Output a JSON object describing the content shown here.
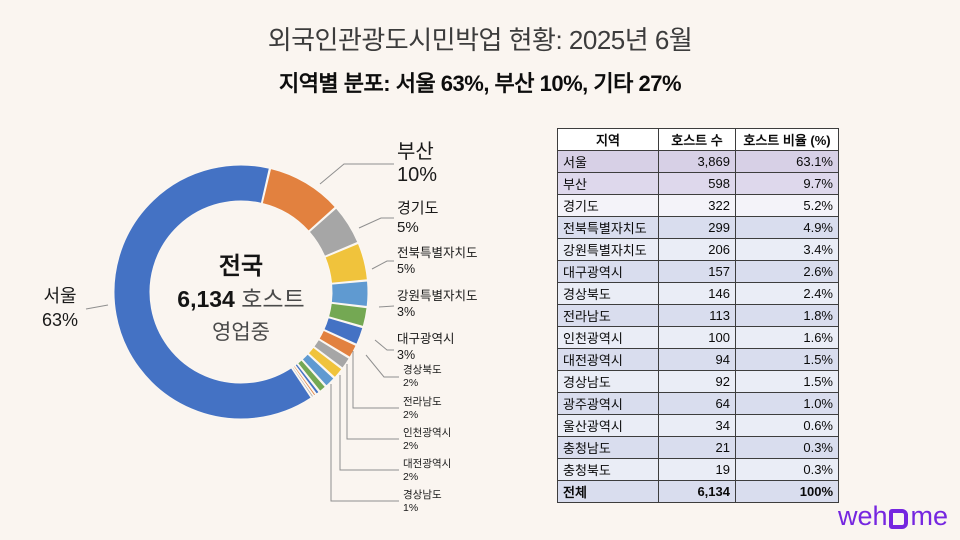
{
  "page": {
    "background": "#faf5f0"
  },
  "header": {
    "title": "외국인관광도시민박업 현황: 2025년 6월",
    "subtitle": "지역별 분포: 서울 63%, 부산 10%, 기타 27%"
  },
  "chart_data": {
    "type": "pie",
    "donut": true,
    "title": "외국인관광도시민박업 현황: 2025년 6월",
    "subtitle": "지역별 분포: 서울 63%, 부산 10%, 기타 27%",
    "total_hosts": 6134,
    "start_angle_deg": 13.2,
    "center_label": {
      "line1": "전국",
      "value": "6,134",
      "unit": "호스트",
      "line3": "영업중"
    },
    "segments": [
      {
        "label": "부산",
        "hosts": 598,
        "color": "#e2813f"
      },
      {
        "label": "경기도",
        "hosts": 322,
        "color": "#a6a6a6"
      },
      {
        "label": "전북특별자치도",
        "hosts": 299,
        "color": "#f0c33c"
      },
      {
        "label": "강원특별자치도",
        "hosts": 206,
        "color": "#5f9ad1"
      },
      {
        "label": "대구광역시",
        "hosts": 157,
        "color": "#74a853"
      },
      {
        "label": "경상북도",
        "hosts": 146,
        "color": "#4472c4"
      },
      {
        "label": "전라남도",
        "hosts": 113,
        "color": "#e2813f"
      },
      {
        "label": "인천광역시",
        "hosts": 100,
        "color": "#a6a6a6"
      },
      {
        "label": "대전광역시",
        "hosts": 94,
        "color": "#f0c33c"
      },
      {
        "label": "경상남도",
        "hosts": 92,
        "color": "#5f9ad1"
      },
      {
        "label": "광주광역시",
        "hosts": 64,
        "color": "#74a853"
      },
      {
        "label": "울산광역시",
        "hosts": 34,
        "color": "#4472c4"
      },
      {
        "label": "충청남도",
        "hosts": 21,
        "color": "#e2813f"
      },
      {
        "label": "충청북도",
        "hosts": 19,
        "color": "#a6a6a6"
      },
      {
        "label": "서울",
        "hosts": 3869,
        "color": "#4472c4"
      }
    ],
    "callouts": [
      {
        "name": "부산",
        "pct": "10%"
      },
      {
        "name": "경기도",
        "pct": "5%"
      },
      {
        "name": "전북특별자치도",
        "pct": "5%"
      },
      {
        "name": "강원특별자치도",
        "pct": "3%"
      },
      {
        "name": "대구광역시",
        "pct": "3%"
      },
      {
        "name": "경상북도",
        "pct": "2%"
      },
      {
        "name": "전라남도",
        "pct": "2%"
      },
      {
        "name": "인천광역시",
        "pct": "2%"
      },
      {
        "name": "대전광역시",
        "pct": "2%"
      },
      {
        "name": "경상남도",
        "pct": "1%"
      }
    ],
    "seoul_callout": {
      "name": "서울",
      "pct": "63%"
    }
  },
  "table": {
    "headers": [
      "지역",
      "호스트 수",
      "호스트 비율 (%)"
    ],
    "rows": [
      [
        "서울",
        "3,869",
        "63.1%"
      ],
      [
        "부산",
        "598",
        "9.7%"
      ],
      [
        "경기도",
        "322",
        "5.2%"
      ],
      [
        "전북특별자치도",
        "299",
        "4.9%"
      ],
      [
        "강원특별자치도",
        "206",
        "3.4%"
      ],
      [
        "대구광역시",
        "157",
        "2.6%"
      ],
      [
        "경상북도",
        "146",
        "2.4%"
      ],
      [
        "전라남도",
        "113",
        "1.8%"
      ],
      [
        "인천광역시",
        "100",
        "1.6%"
      ],
      [
        "대전광역시",
        "94",
        "1.5%"
      ],
      [
        "경상남도",
        "92",
        "1.5%"
      ],
      [
        "광주광역시",
        "64",
        "1.0%"
      ],
      [
        "울산광역시",
        "34",
        "0.6%"
      ],
      [
        "충청남도",
        "21",
        "0.3%"
      ],
      [
        "충청북도",
        "19",
        "0.3%"
      ]
    ],
    "total_row": [
      "전체",
      "6,134",
      "100%"
    ]
  },
  "logo": {
    "text_before": "weh",
    "text_after": "me",
    "color": "#7526e0"
  }
}
